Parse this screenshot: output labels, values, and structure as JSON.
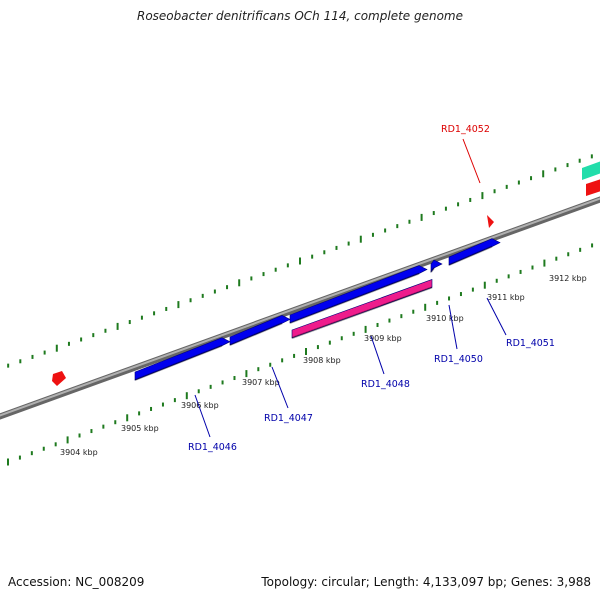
{
  "header": {
    "title": "Roseobacter denitrificans OCh 114, complete genome"
  },
  "footer": {
    "accession": "Accession: NC_008209",
    "summary": "Topology: circular; Length: 4,133,097 bp; Genes: 3,988"
  },
  "map": {
    "colors": {
      "backbone": "#8a8a8a",
      "tick": "#1e7a1e",
      "forward_gene": "#0000ee",
      "pink_gene": "#ee1c8c",
      "red_marker": "#ee1111",
      "teal_gene": "#22ddaa",
      "red_label": "#dd0000",
      "blue_label": "#0000aa"
    },
    "scale_labels": [
      {
        "text": "3904 kbp",
        "kbp": 3904
      },
      {
        "text": "3905 kbp",
        "kbp": 3905
      },
      {
        "text": "3906 kbp",
        "kbp": 3906
      },
      {
        "text": "3907 kbp",
        "kbp": 3907
      },
      {
        "text": "3908 kbp",
        "kbp": 3908
      },
      {
        "text": "3909 kbp",
        "kbp": 3909
      },
      {
        "text": "3910 kbp",
        "kbp": 3910
      },
      {
        "text": "3911 kbp",
        "kbp": 3911
      },
      {
        "text": "3912 kbp",
        "kbp": 3912
      }
    ],
    "genes": [
      {
        "id": "RD1_4046",
        "label": "RD1_4046",
        "type": "forward"
      },
      {
        "id": "RD1_4047",
        "label": "RD1_4047",
        "type": "forward"
      },
      {
        "id": "RD1_4048",
        "label": "RD1_4048",
        "type": "pink"
      },
      {
        "id": "RD1_4050",
        "label": "RD1_4050",
        "type": "forward"
      },
      {
        "id": "RD1_4051",
        "label": "RD1_4051",
        "type": "forward"
      },
      {
        "id": "RD1_4052",
        "label": "RD1_4052",
        "type": "red_marker"
      }
    ]
  }
}
